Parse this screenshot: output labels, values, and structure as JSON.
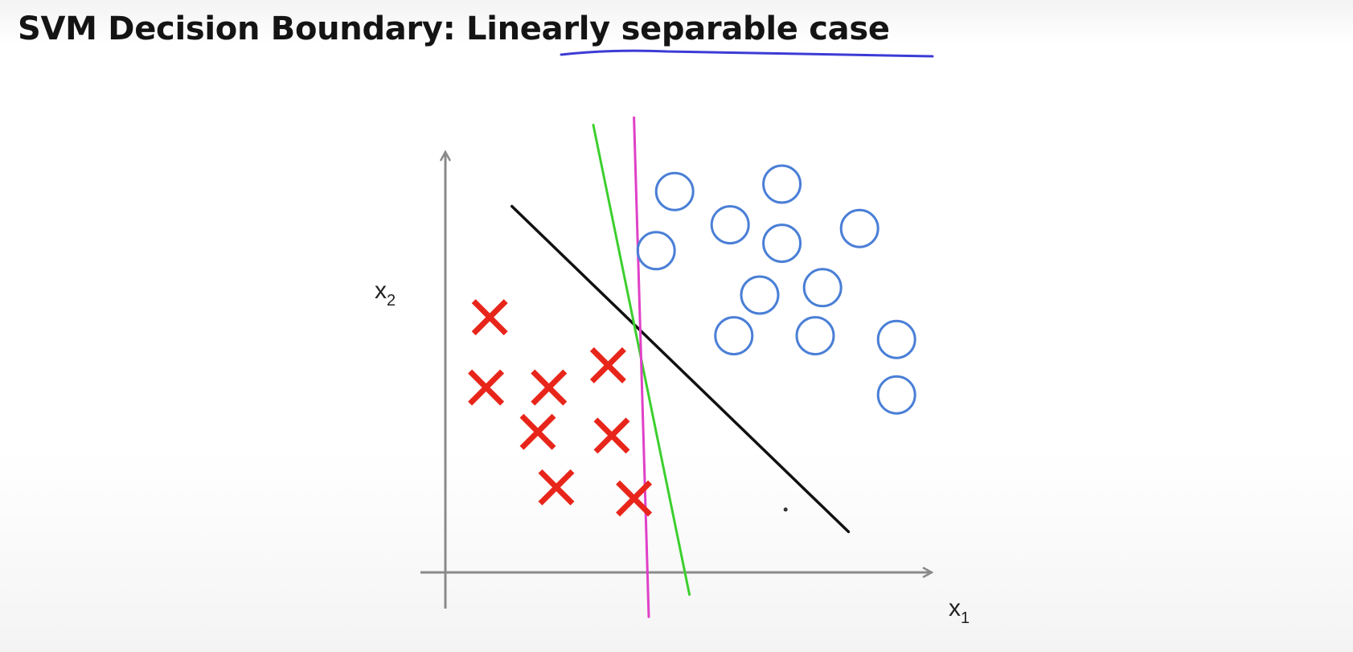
{
  "slide": {
    "title_main": "SVM Decision Boundary: ",
    "title_underlined": "Linearly separable",
    "title_tail": " case"
  },
  "axes": {
    "x_label": "x",
    "x_subscript": "1",
    "y_label": "x",
    "y_subscript": "2"
  },
  "colors": {
    "negative_marker": "#e8251a",
    "positive_marker": "#4a7fd6",
    "axis": "#8a8a8a",
    "boundary_black": "#111111",
    "boundary_green": "#3ccf2e",
    "boundary_magenta": "#e040c8",
    "underline": "#3b3bd6"
  },
  "diagram_data": {
    "negative_examples": [
      [
        1.2,
        6.9
      ],
      [
        1.1,
        5.0
      ],
      [
        2.8,
        5.0
      ],
      [
        4.4,
        5.6
      ],
      [
        2.5,
        3.8
      ],
      [
        4.5,
        3.7
      ],
      [
        3.0,
        2.3
      ],
      [
        5.1,
        2.0
      ]
    ],
    "positive_examples": [
      [
        6.2,
        10.3
      ],
      [
        9.1,
        10.5
      ],
      [
        7.7,
        9.4
      ],
      [
        11.2,
        9.3
      ],
      [
        5.7,
        8.7
      ],
      [
        9.1,
        8.9
      ],
      [
        8.5,
        7.5
      ],
      [
        10.2,
        7.7
      ],
      [
        7.8,
        6.4
      ],
      [
        10.0,
        6.4
      ],
      [
        12.2,
        6.3
      ],
      [
        12.2,
        4.8
      ]
    ],
    "boundaries": [
      {
        "name": "black-boundary",
        "from": [
          1.8,
          9.9
        ],
        "to": [
          10.9,
          1.1
        ]
      },
      {
        "name": "green-boundary",
        "from": [
          4.0,
          12.1
        ],
        "to": [
          6.6,
          -0.6
        ]
      },
      {
        "name": "magenta-boundary",
        "from": [
          5.1,
          12.3
        ],
        "to": [
          5.5,
          -1.2
        ]
      }
    ],
    "stray_dot": [
      9.2,
      1.7
    ]
  }
}
